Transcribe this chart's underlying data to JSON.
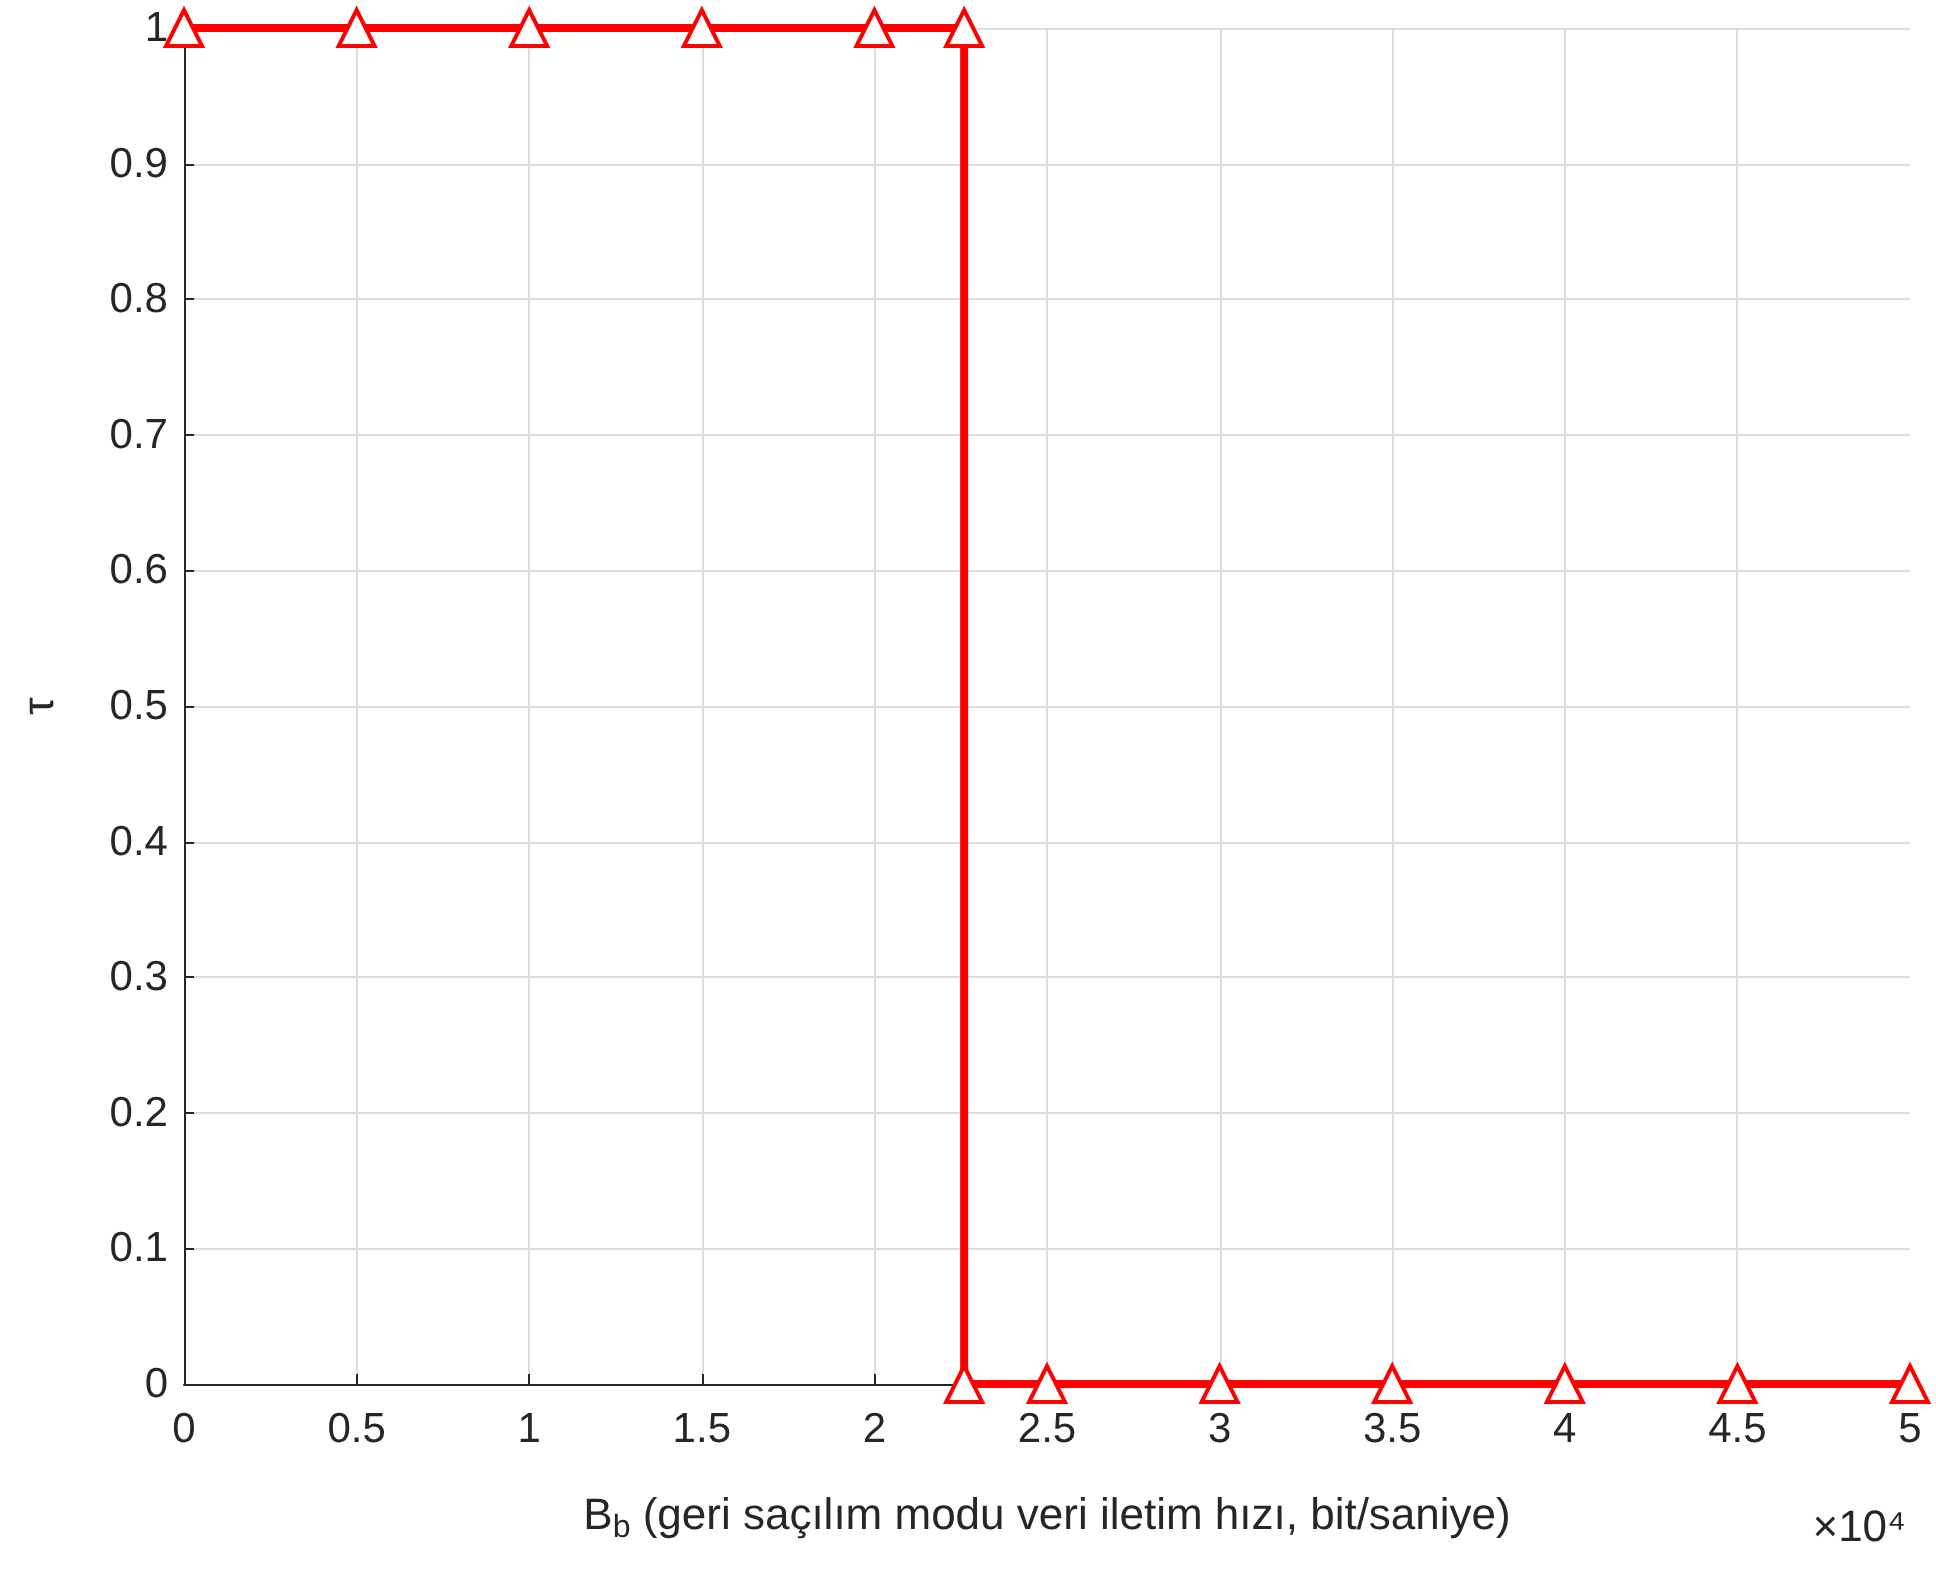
{
  "chart_data": {
    "type": "line",
    "xlabel": "B$_{b}$ (geri saçılım modu veri iletim hızı, bit/saniye)",
    "ylabel": "τ",
    "annotations": [
      "×10⁴"
    ],
    "x": [
      0,
      0.5,
      1,
      1.5,
      2,
      2.26,
      2.26,
      2.5,
      3,
      3.5,
      4,
      4.5,
      5
    ],
    "series": [
      {
        "color": "#ff0000",
        "values": [
          1,
          1,
          1,
          1,
          1,
          1,
          0,
          0,
          0,
          0,
          0,
          0,
          0
        ]
      }
    ],
    "xlim": [
      0,
      5
    ],
    "xticks": [
      0,
      0.5,
      1,
      1.5,
      2,
      2.5,
      3,
      3.5,
      4,
      4.5,
      5
    ],
    "ylim": [
      0,
      1
    ],
    "yticks": [
      0,
      0.1,
      0.2,
      0.3,
      0.4,
      0.5,
      0.6,
      0.7,
      0.8,
      0.9,
      1
    ],
    "grid": true,
    "marker": "triangle",
    "line_style": "solid"
  }
}
